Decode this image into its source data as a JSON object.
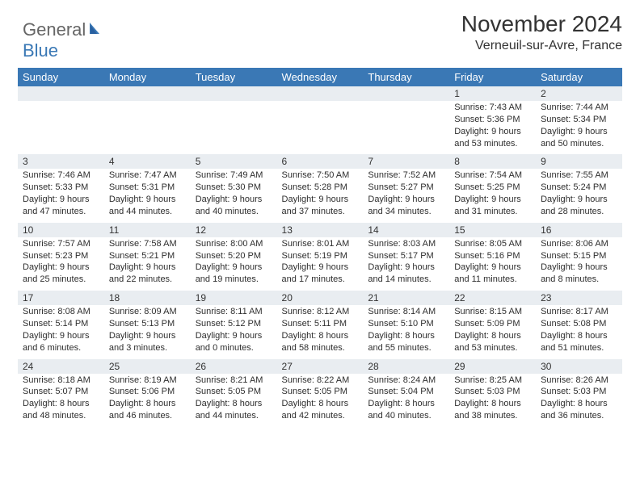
{
  "logo": {
    "part1": "General",
    "part2": "Blue"
  },
  "title": "November 2024",
  "location": "Verneuil-sur-Avre, France",
  "colors": {
    "headerBlue": "#3a78b5",
    "bandGray": "#e9edf1",
    "textDark": "#333333",
    "logoGray": "#666666"
  },
  "dayNames": [
    "Sunday",
    "Monday",
    "Tuesday",
    "Wednesday",
    "Thursday",
    "Friday",
    "Saturday"
  ],
  "weeks": [
    [
      null,
      null,
      null,
      null,
      null,
      {
        "n": "1",
        "sunrise": "7:43 AM",
        "sunset": "5:36 PM",
        "dl1": "Daylight: 9 hours",
        "dl2": "and 53 minutes."
      },
      {
        "n": "2",
        "sunrise": "7:44 AM",
        "sunset": "5:34 PM",
        "dl1": "Daylight: 9 hours",
        "dl2": "and 50 minutes."
      }
    ],
    [
      {
        "n": "3",
        "sunrise": "7:46 AM",
        "sunset": "5:33 PM",
        "dl1": "Daylight: 9 hours",
        "dl2": "and 47 minutes."
      },
      {
        "n": "4",
        "sunrise": "7:47 AM",
        "sunset": "5:31 PM",
        "dl1": "Daylight: 9 hours",
        "dl2": "and 44 minutes."
      },
      {
        "n": "5",
        "sunrise": "7:49 AM",
        "sunset": "5:30 PM",
        "dl1": "Daylight: 9 hours",
        "dl2": "and 40 minutes."
      },
      {
        "n": "6",
        "sunrise": "7:50 AM",
        "sunset": "5:28 PM",
        "dl1": "Daylight: 9 hours",
        "dl2": "and 37 minutes."
      },
      {
        "n": "7",
        "sunrise": "7:52 AM",
        "sunset": "5:27 PM",
        "dl1": "Daylight: 9 hours",
        "dl2": "and 34 minutes."
      },
      {
        "n": "8",
        "sunrise": "7:54 AM",
        "sunset": "5:25 PM",
        "dl1": "Daylight: 9 hours",
        "dl2": "and 31 minutes."
      },
      {
        "n": "9",
        "sunrise": "7:55 AM",
        "sunset": "5:24 PM",
        "dl1": "Daylight: 9 hours",
        "dl2": "and 28 minutes."
      }
    ],
    [
      {
        "n": "10",
        "sunrise": "7:57 AM",
        "sunset": "5:23 PM",
        "dl1": "Daylight: 9 hours",
        "dl2": "and 25 minutes."
      },
      {
        "n": "11",
        "sunrise": "7:58 AM",
        "sunset": "5:21 PM",
        "dl1": "Daylight: 9 hours",
        "dl2": "and 22 minutes."
      },
      {
        "n": "12",
        "sunrise": "8:00 AM",
        "sunset": "5:20 PM",
        "dl1": "Daylight: 9 hours",
        "dl2": "and 19 minutes."
      },
      {
        "n": "13",
        "sunrise": "8:01 AM",
        "sunset": "5:19 PM",
        "dl1": "Daylight: 9 hours",
        "dl2": "and 17 minutes."
      },
      {
        "n": "14",
        "sunrise": "8:03 AM",
        "sunset": "5:17 PM",
        "dl1": "Daylight: 9 hours",
        "dl2": "and 14 minutes."
      },
      {
        "n": "15",
        "sunrise": "8:05 AM",
        "sunset": "5:16 PM",
        "dl1": "Daylight: 9 hours",
        "dl2": "and 11 minutes."
      },
      {
        "n": "16",
        "sunrise": "8:06 AM",
        "sunset": "5:15 PM",
        "dl1": "Daylight: 9 hours",
        "dl2": "and 8 minutes."
      }
    ],
    [
      {
        "n": "17",
        "sunrise": "8:08 AM",
        "sunset": "5:14 PM",
        "dl1": "Daylight: 9 hours",
        "dl2": "and 6 minutes."
      },
      {
        "n": "18",
        "sunrise": "8:09 AM",
        "sunset": "5:13 PM",
        "dl1": "Daylight: 9 hours",
        "dl2": "and 3 minutes."
      },
      {
        "n": "19",
        "sunrise": "8:11 AM",
        "sunset": "5:12 PM",
        "dl1": "Daylight: 9 hours",
        "dl2": "and 0 minutes."
      },
      {
        "n": "20",
        "sunrise": "8:12 AM",
        "sunset": "5:11 PM",
        "dl1": "Daylight: 8 hours",
        "dl2": "and 58 minutes."
      },
      {
        "n": "21",
        "sunrise": "8:14 AM",
        "sunset": "5:10 PM",
        "dl1": "Daylight: 8 hours",
        "dl2": "and 55 minutes."
      },
      {
        "n": "22",
        "sunrise": "8:15 AM",
        "sunset": "5:09 PM",
        "dl1": "Daylight: 8 hours",
        "dl2": "and 53 minutes."
      },
      {
        "n": "23",
        "sunrise": "8:17 AM",
        "sunset": "5:08 PM",
        "dl1": "Daylight: 8 hours",
        "dl2": "and 51 minutes."
      }
    ],
    [
      {
        "n": "24",
        "sunrise": "8:18 AM",
        "sunset": "5:07 PM",
        "dl1": "Daylight: 8 hours",
        "dl2": "and 48 minutes."
      },
      {
        "n": "25",
        "sunrise": "8:19 AM",
        "sunset": "5:06 PM",
        "dl1": "Daylight: 8 hours",
        "dl2": "and 46 minutes."
      },
      {
        "n": "26",
        "sunrise": "8:21 AM",
        "sunset": "5:05 PM",
        "dl1": "Daylight: 8 hours",
        "dl2": "and 44 minutes."
      },
      {
        "n": "27",
        "sunrise": "8:22 AM",
        "sunset": "5:05 PM",
        "dl1": "Daylight: 8 hours",
        "dl2": "and 42 minutes."
      },
      {
        "n": "28",
        "sunrise": "8:24 AM",
        "sunset": "5:04 PM",
        "dl1": "Daylight: 8 hours",
        "dl2": "and 40 minutes."
      },
      {
        "n": "29",
        "sunrise": "8:25 AM",
        "sunset": "5:03 PM",
        "dl1": "Daylight: 8 hours",
        "dl2": "and 38 minutes."
      },
      {
        "n": "30",
        "sunrise": "8:26 AM",
        "sunset": "5:03 PM",
        "dl1": "Daylight: 8 hours",
        "dl2": "and 36 minutes."
      }
    ]
  ],
  "labels": {
    "sunrisePrefix": "Sunrise: ",
    "sunsetPrefix": "Sunset: "
  }
}
